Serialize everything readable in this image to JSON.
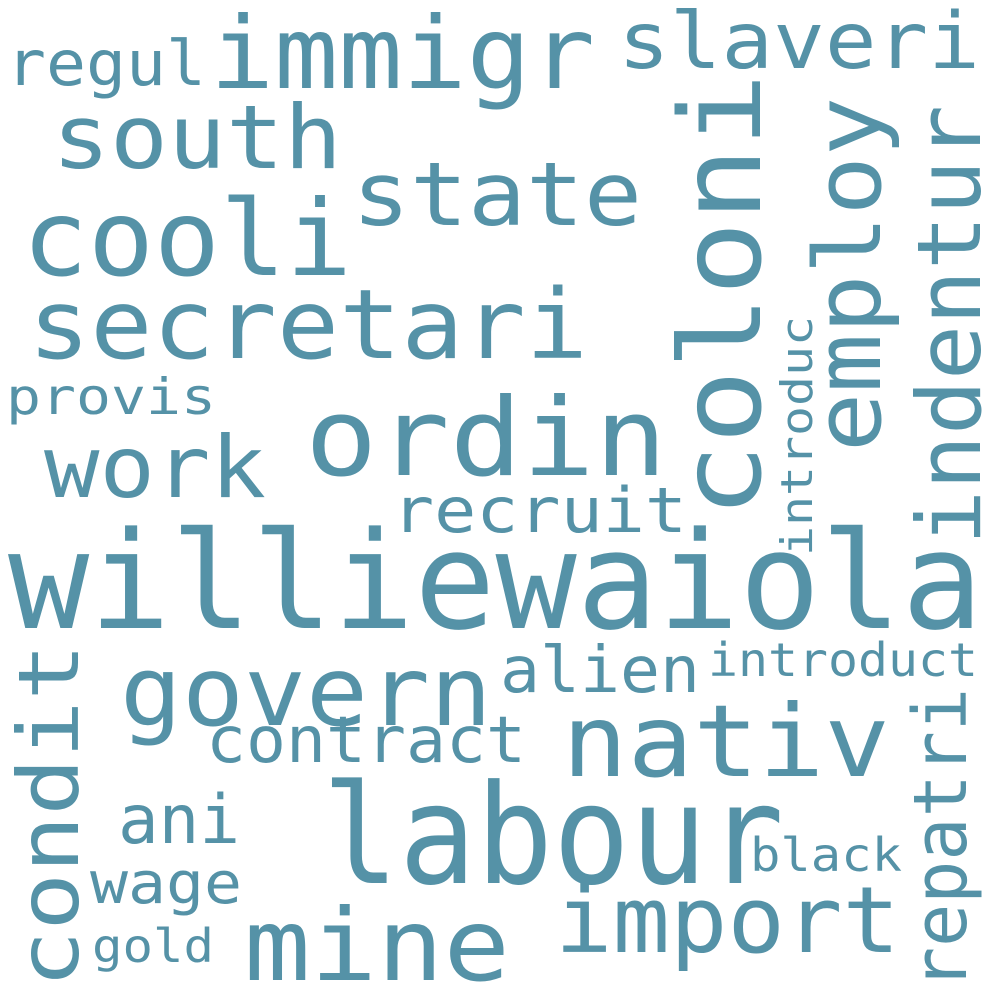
{
  "colors": {
    "background": "#ffffff",
    "word": "#5592a7"
  },
  "words": [
    {
      "id": "w-williewaiola",
      "text": "williewaiola"
    },
    {
      "id": "w-labour",
      "text": "labour"
    },
    {
      "id": "w-coloni",
      "text": "coloni"
    },
    {
      "id": "w-ordin",
      "text": "ordin"
    },
    {
      "id": "w-cooli",
      "text": "cooli"
    },
    {
      "id": "w-secretari",
      "text": "secretari"
    },
    {
      "id": "w-immigr",
      "text": "immigr"
    },
    {
      "id": "w-nativ",
      "text": "nativ"
    },
    {
      "id": "w-mine",
      "text": "mine"
    },
    {
      "id": "w-govern",
      "text": "govern"
    },
    {
      "id": "w-import",
      "text": "import"
    },
    {
      "id": "w-employ",
      "text": "employ"
    },
    {
      "id": "w-indentur",
      "text": "indentur"
    },
    {
      "id": "w-state",
      "text": "state"
    },
    {
      "id": "w-south",
      "text": "south"
    },
    {
      "id": "w-condit",
      "text": "condit"
    },
    {
      "id": "w-slaveri",
      "text": "slaveri"
    },
    {
      "id": "w-work",
      "text": "work"
    },
    {
      "id": "w-repatri",
      "text": "repatri"
    },
    {
      "id": "w-recruit",
      "text": "recruit"
    },
    {
      "id": "w-contract",
      "text": "contract"
    },
    {
      "id": "w-alien",
      "text": "alien"
    },
    {
      "id": "w-ani",
      "text": "ani"
    },
    {
      "id": "w-wage",
      "text": "wage"
    },
    {
      "id": "w-regul",
      "text": "regul"
    },
    {
      "id": "w-introduct",
      "text": "introduct"
    },
    {
      "id": "w-provis",
      "text": "provis"
    },
    {
      "id": "w-black",
      "text": "black"
    },
    {
      "id": "w-introduc",
      "text": "introduc"
    },
    {
      "id": "w-gold",
      "text": "gold"
    }
  ]
}
